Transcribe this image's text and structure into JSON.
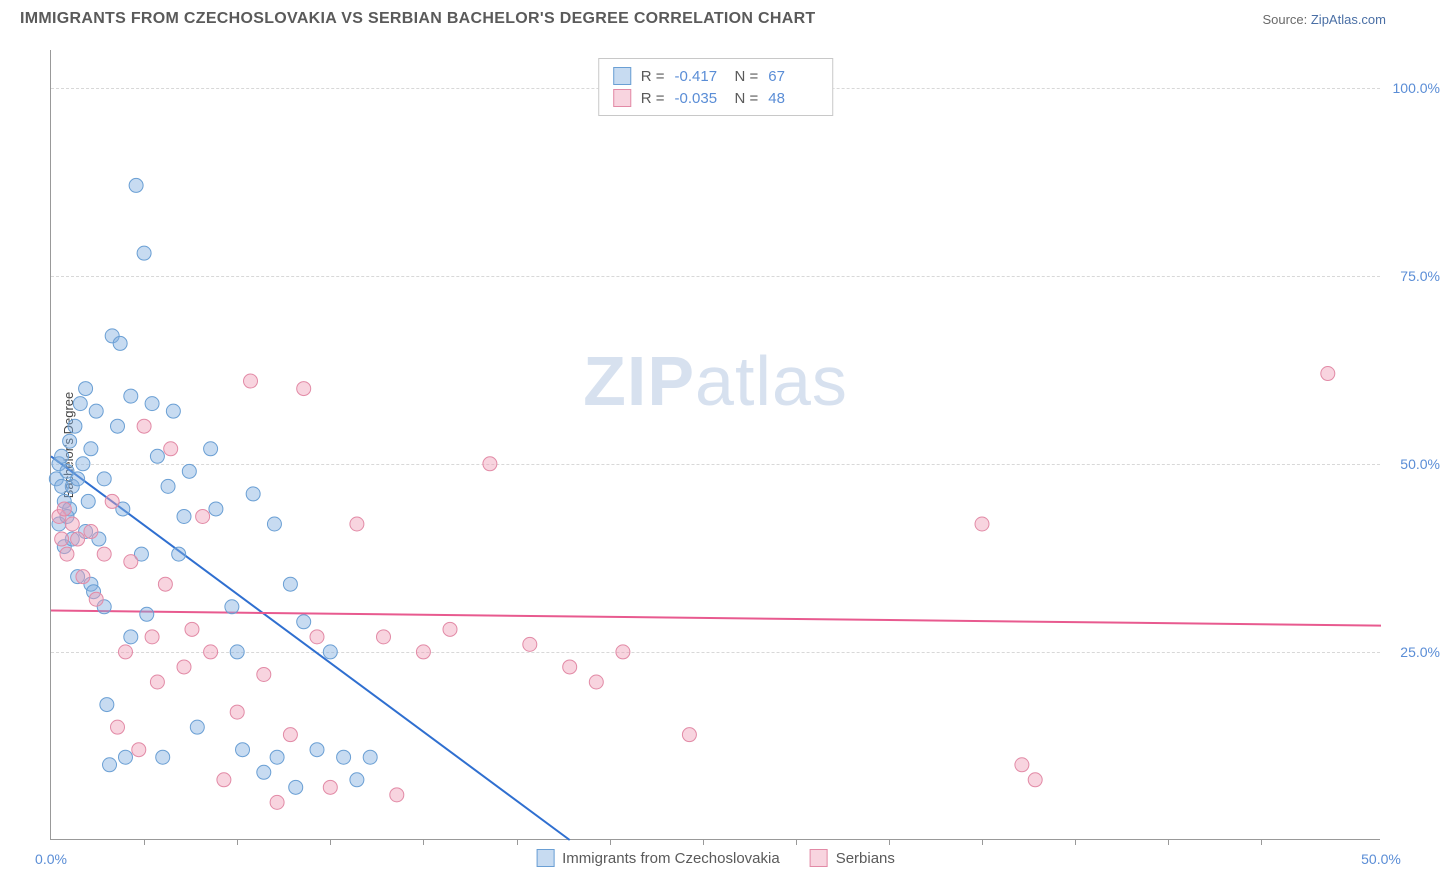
{
  "header": {
    "title": "IMMIGRANTS FROM CZECHOSLOVAKIA VS SERBIAN BACHELOR'S DEGREE CORRELATION CHART",
    "source_prefix": "Source: ",
    "source_link": "ZipAtlas.com"
  },
  "watermark": {
    "part1": "ZIP",
    "part2": "atlas"
  },
  "chart": {
    "type": "scatter",
    "ylabel": "Bachelor's Degree",
    "xlim": [
      0,
      50
    ],
    "ylim": [
      0,
      105
    ],
    "y_gridlines": [
      25,
      50,
      75,
      100
    ],
    "y_tick_labels": [
      "25.0%",
      "50.0%",
      "75.0%",
      "100.0%"
    ],
    "x_ticks": [
      0,
      50
    ],
    "x_tick_labels": [
      "0.0%",
      "50.0%"
    ],
    "x_minor_ticks": [
      3.5,
      7,
      10.5,
      14,
      17.5,
      21,
      24.5,
      28,
      31.5,
      35,
      38.5,
      42,
      45.5
    ],
    "background_color": "#ffffff",
    "grid_color": "#d8d8d8",
    "axis_color": "#999999",
    "series": [
      {
        "name": "Immigrants from Czechoslovakia",
        "marker_fill": "rgba(130,175,225,0.45)",
        "marker_stroke": "#6a9fd4",
        "marker_radius": 7,
        "trend_color": "#2f6fd0",
        "trend_width": 2,
        "trend": {
          "x1": 0,
          "y1": 51,
          "x2": 19.5,
          "y2": 0
        },
        "R": "-0.417",
        "N": "67",
        "points": [
          [
            0.2,
            48
          ],
          [
            0.3,
            50
          ],
          [
            0.3,
            42
          ],
          [
            0.4,
            47
          ],
          [
            0.4,
            51
          ],
          [
            0.5,
            45
          ],
          [
            0.5,
            39
          ],
          [
            0.6,
            49
          ],
          [
            0.7,
            53
          ],
          [
            0.7,
            44
          ],
          [
            0.8,
            47
          ],
          [
            0.8,
            40
          ],
          [
            0.9,
            55
          ],
          [
            1.0,
            48
          ],
          [
            1.0,
            35
          ],
          [
            1.1,
            58
          ],
          [
            1.2,
            50
          ],
          [
            1.3,
            41
          ],
          [
            1.3,
            60
          ],
          [
            1.4,
            45
          ],
          [
            1.5,
            52
          ],
          [
            1.5,
            34
          ],
          [
            1.7,
            57
          ],
          [
            1.8,
            40
          ],
          [
            2.0,
            48
          ],
          [
            2.0,
            31
          ],
          [
            2.1,
            18
          ],
          [
            2.2,
            10
          ],
          [
            2.3,
            67
          ],
          [
            2.5,
            55
          ],
          [
            2.6,
            66
          ],
          [
            2.7,
            44
          ],
          [
            2.8,
            11
          ],
          [
            3.0,
            59
          ],
          [
            3.0,
            27
          ],
          [
            3.2,
            87
          ],
          [
            3.5,
            78
          ],
          [
            3.6,
            30
          ],
          [
            3.8,
            58
          ],
          [
            4.0,
            51
          ],
          [
            4.2,
            11
          ],
          [
            4.4,
            47
          ],
          [
            4.6,
            57
          ],
          [
            5.0,
            43
          ],
          [
            5.2,
            49
          ],
          [
            5.5,
            15
          ],
          [
            6.0,
            52
          ],
          [
            6.2,
            44
          ],
          [
            6.8,
            31
          ],
          [
            7.2,
            12
          ],
          [
            7.6,
            46
          ],
          [
            8.0,
            9
          ],
          [
            8.4,
            42
          ],
          [
            8.5,
            11
          ],
          [
            9.0,
            34
          ],
          [
            9.2,
            7
          ],
          [
            9.5,
            29
          ],
          [
            10.0,
            12
          ],
          [
            10.5,
            25
          ],
          [
            11.0,
            11
          ],
          [
            11.5,
            8
          ],
          [
            12.0,
            11
          ],
          [
            7.0,
            25
          ],
          [
            4.8,
            38
          ],
          [
            3.4,
            38
          ],
          [
            1.6,
            33
          ],
          [
            0.6,
            43
          ]
        ]
      },
      {
        "name": "Serbians",
        "marker_fill": "rgba(240,160,185,0.45)",
        "marker_stroke": "#e28aa6",
        "marker_radius": 7,
        "trend_color": "#e85a8f",
        "trend_width": 2,
        "trend": {
          "x1": 0,
          "y1": 30.5,
          "x2": 50,
          "y2": 28.5
        },
        "R": "-0.035",
        "N": "48",
        "points": [
          [
            0.3,
            43
          ],
          [
            0.4,
            40
          ],
          [
            0.5,
            44
          ],
          [
            0.6,
            38
          ],
          [
            0.8,
            42
          ],
          [
            1.0,
            40
          ],
          [
            1.2,
            35
          ],
          [
            1.5,
            41
          ],
          [
            1.7,
            32
          ],
          [
            2.0,
            38
          ],
          [
            2.3,
            45
          ],
          [
            2.5,
            15
          ],
          [
            2.8,
            25
          ],
          [
            3.0,
            37
          ],
          [
            3.3,
            12
          ],
          [
            3.5,
            55
          ],
          [
            3.8,
            27
          ],
          [
            4.0,
            21
          ],
          [
            4.3,
            34
          ],
          [
            4.5,
            52
          ],
          [
            5.0,
            23
          ],
          [
            5.3,
            28
          ],
          [
            5.7,
            43
          ],
          [
            6.0,
            25
          ],
          [
            6.5,
            8
          ],
          [
            7.0,
            17
          ],
          [
            7.5,
            61
          ],
          [
            8.0,
            22
          ],
          [
            8.5,
            5
          ],
          [
            9.0,
            14
          ],
          [
            9.5,
            60
          ],
          [
            10.0,
            27
          ],
          [
            10.5,
            7
          ],
          [
            11.5,
            42
          ],
          [
            12.5,
            27
          ],
          [
            13.0,
            6
          ],
          [
            14.0,
            25
          ],
          [
            15.0,
            28
          ],
          [
            16.5,
            50
          ],
          [
            18.0,
            26
          ],
          [
            19.5,
            23
          ],
          [
            20.5,
            21
          ],
          [
            21.5,
            25
          ],
          [
            24.0,
            14
          ],
          [
            35.0,
            42
          ],
          [
            36.5,
            10
          ],
          [
            37.0,
            8
          ],
          [
            48.0,
            62
          ]
        ]
      }
    ],
    "legend_top": {
      "R_label": "R =",
      "N_label": "N ="
    },
    "tick_label_color": "#5a8dd6"
  }
}
